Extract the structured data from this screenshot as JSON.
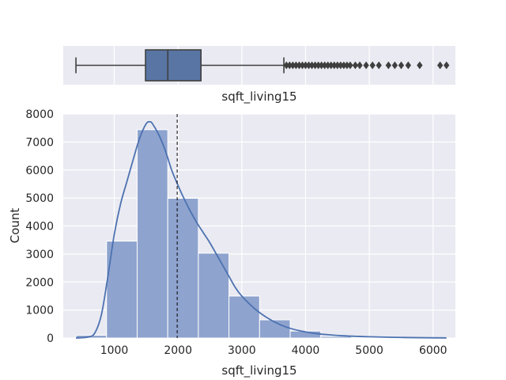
{
  "chart_data": [
    {
      "type": "box",
      "xlabel": "sqft_living15",
      "xlim": [
        200,
        6350
      ],
      "stats": {
        "whisker_low": 399,
        "q1": 1490,
        "median": 1840,
        "q3": 2360,
        "whisker_high": 3660
      },
      "outliers": [
        3700,
        3750,
        3800,
        3850,
        3900,
        3950,
        4000,
        4050,
        4100,
        4150,
        4200,
        4250,
        4300,
        4350,
        4400,
        4450,
        4500,
        4550,
        4600,
        4650,
        4700,
        4780,
        4850,
        4950,
        5050,
        5150,
        5300,
        5400,
        5500,
        5610,
        5790,
        6110,
        6210
      ],
      "grid": true,
      "color": "#5975a4"
    },
    {
      "type": "bar",
      "subtype": "histogram_with_kde",
      "xlabel": "sqft_living15",
      "ylabel": "Count",
      "xlim": [
        200,
        6350
      ],
      "ylim": [
        0,
        8000
      ],
      "xticks": [
        1000,
        2000,
        3000,
        4000,
        5000,
        6000
      ],
      "yticks": [
        0,
        1000,
        2000,
        3000,
        4000,
        5000,
        6000,
        7000,
        8000
      ],
      "bins": [
        {
          "x0": 399,
          "x1": 879,
          "count": 100
        },
        {
          "x0": 879,
          "x1": 1359,
          "count": 3460
        },
        {
          "x0": 1359,
          "x1": 1839,
          "count": 7440
        },
        {
          "x0": 1839,
          "x1": 2319,
          "count": 4990
        },
        {
          "x0": 2319,
          "x1": 2799,
          "count": 3030
        },
        {
          "x0": 2799,
          "x1": 3279,
          "count": 1500
        },
        {
          "x0": 3279,
          "x1": 3759,
          "count": 650
        },
        {
          "x0": 3759,
          "x1": 4239,
          "count": 250
        },
        {
          "x0": 4239,
          "x1": 4719,
          "count": 60
        },
        {
          "x0": 4719,
          "x1": 5199,
          "count": 20
        },
        {
          "x0": 5199,
          "x1": 5679,
          "count": 8
        },
        {
          "x0": 5679,
          "x1": 6159,
          "count": 4
        },
        {
          "x0": 6159,
          "x1": 6210,
          "count": 3
        }
      ],
      "kde": {
        "x": [
          399,
          600,
          700,
          800,
          900,
          1000,
          1100,
          1200,
          1300,
          1400,
          1500,
          1560,
          1600,
          1700,
          1800,
          1900,
          2000,
          2100,
          2200,
          2300,
          2400,
          2500,
          2600,
          2700,
          2800,
          2900,
          3000,
          3200,
          3400,
          3600,
          3800,
          4000,
          4200,
          4400,
          4600,
          4800,
          5000,
          5400,
          5800,
          6210
        ],
        "y": [
          0,
          40,
          200,
          850,
          2200,
          3700,
          4800,
          5600,
          6400,
          7150,
          7650,
          7720,
          7650,
          7250,
          6700,
          6000,
          5450,
          4950,
          4500,
          4100,
          3750,
          3400,
          3000,
          2600,
          2200,
          1800,
          1500,
          1050,
          720,
          480,
          320,
          220,
          150,
          110,
          80,
          60,
          45,
          25,
          12,
          5
        ]
      },
      "mean_line": 1987,
      "bar_color": "#8ea3ce",
      "line_color": "#4c72b0"
    }
  ]
}
